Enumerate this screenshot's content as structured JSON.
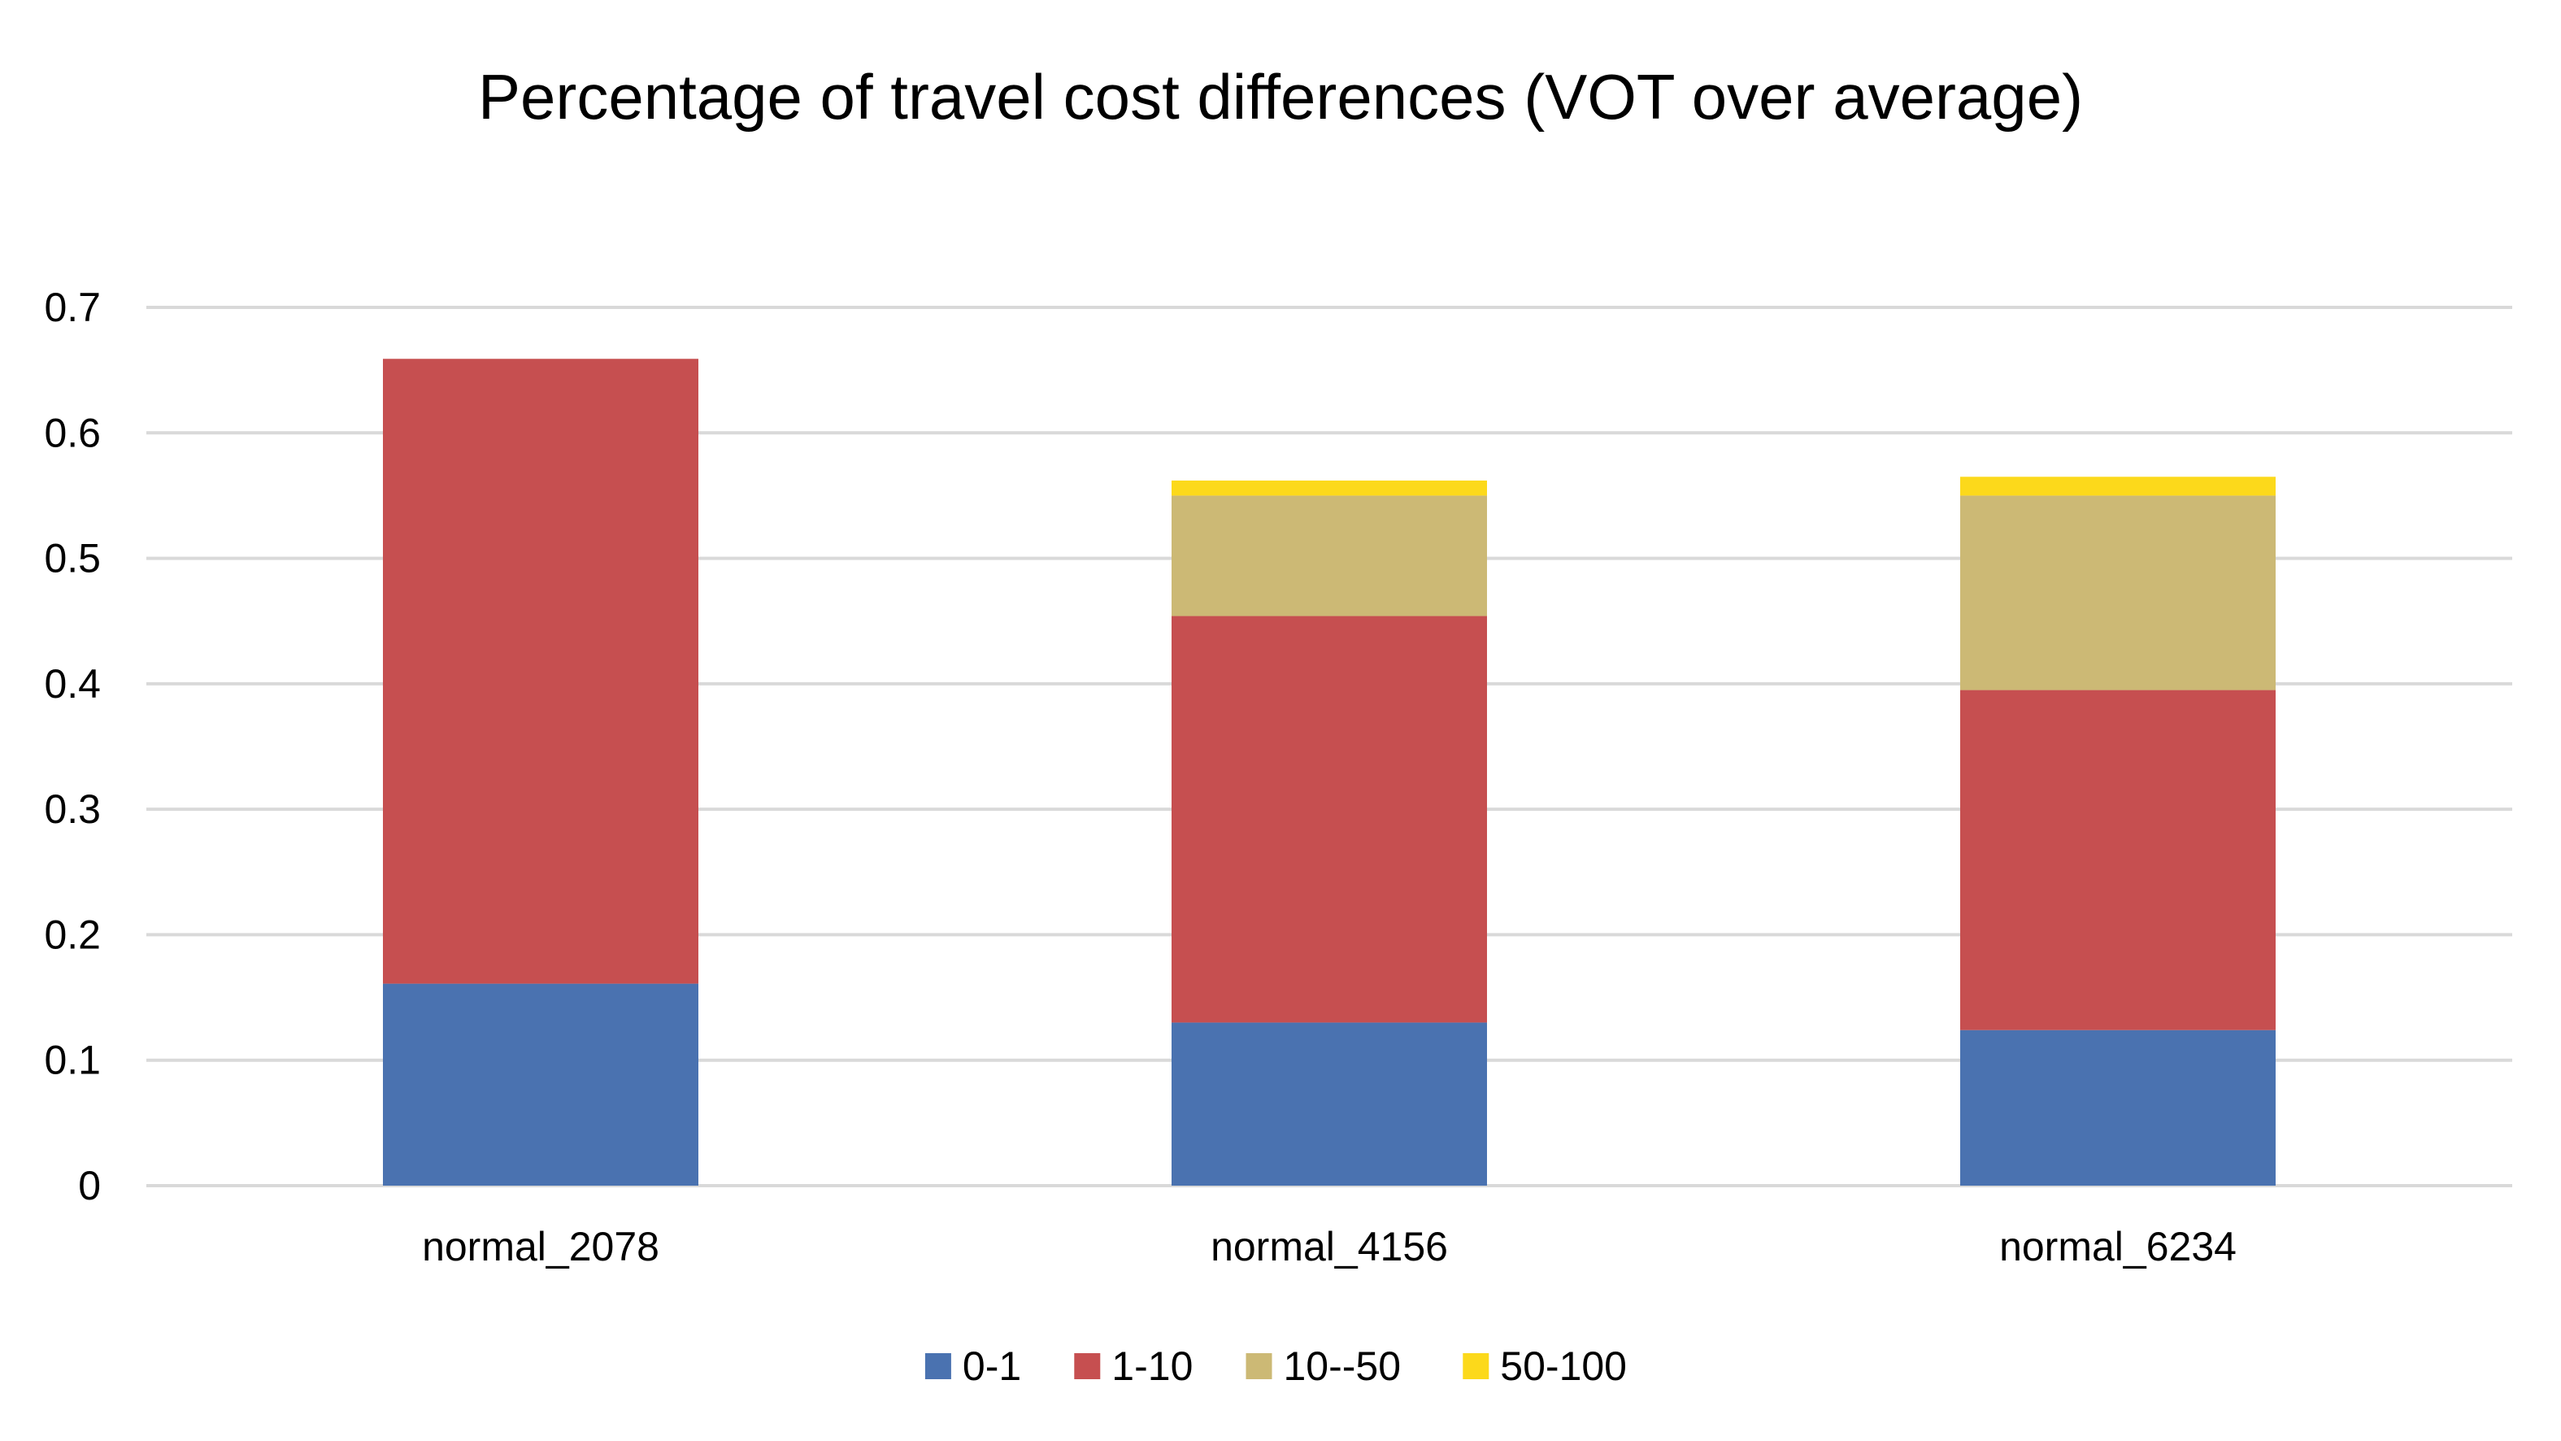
{
  "chart_data": {
    "type": "bar",
    "stacked": true,
    "title": "Percentage of travel cost differences (VOT over average)",
    "xlabel": "",
    "ylabel": "",
    "categories": [
      "normal_2078",
      "normal_4156",
      "normal_6234"
    ],
    "ylim": [
      0,
      0.7
    ],
    "yticks": [
      0,
      0.1,
      0.2,
      0.3,
      0.4,
      0.5,
      0.6,
      0.7
    ],
    "ytick_labels": [
      "0",
      "0.1",
      "0.2",
      "0.3",
      "0.4",
      "0.5",
      "0.6",
      "0.7"
    ],
    "grid": true,
    "legend_position": "bottom",
    "series": [
      {
        "name": "0-1",
        "color": "#4a72b0",
        "values": [
          0.161,
          0.13,
          0.124
        ]
      },
      {
        "name": "1-10",
        "color": "#c64f50",
        "values": [
          0.498,
          0.324,
          0.271
        ]
      },
      {
        "name": "10--50",
        "color": "#ccb975",
        "values": [
          0.0,
          0.096,
          0.155
        ]
      },
      {
        "name": "50-100",
        "color": "#fcd91b",
        "values": [
          0.0,
          0.012,
          0.015
        ]
      }
    ]
  }
}
